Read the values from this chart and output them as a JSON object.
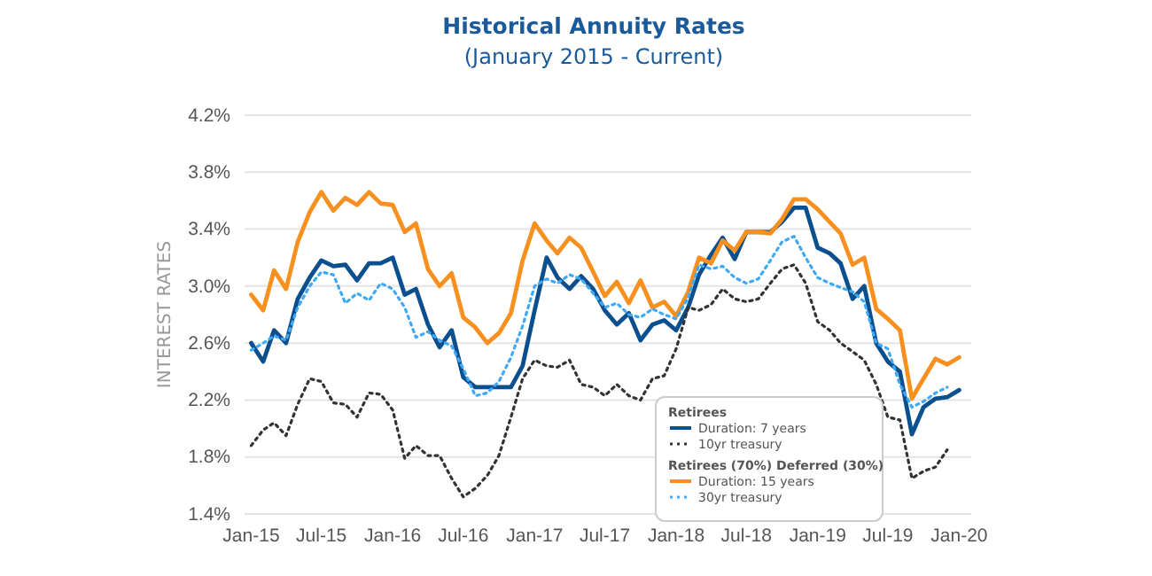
{
  "chart_data": {
    "type": "line",
    "title": "Historical Annuity Rates",
    "subtitle": "(January 2015 - Current)",
    "ylabel": "INTEREST RATES",
    "legend_title": "Retirees",
    "annotations": [
      "Retirees (70%) Deferred (30%)"
    ],
    "x": [
      "2015-01",
      "2015-02",
      "2015-03",
      "2015-04",
      "2015-05",
      "2015-06",
      "2015-07",
      "2015-08",
      "2015-09",
      "2015-10",
      "2015-11",
      "2015-12",
      "2016-01",
      "2016-02",
      "2016-03",
      "2016-04",
      "2016-05",
      "2016-06",
      "2016-07",
      "2016-08",
      "2016-09",
      "2016-10",
      "2016-11",
      "2016-12",
      "2017-01",
      "2017-02",
      "2017-03",
      "2017-04",
      "2017-05",
      "2017-06",
      "2017-07",
      "2017-08",
      "2017-09",
      "2017-10",
      "2017-11",
      "2017-12",
      "2018-01",
      "2018-02",
      "2018-03",
      "2018-04",
      "2018-05",
      "2018-06",
      "2018-07",
      "2018-08",
      "2018-09",
      "2018-10",
      "2018-11",
      "2018-12",
      "2019-01",
      "2019-02",
      "2019-03",
      "2019-04",
      "2019-05",
      "2019-06",
      "2019-07",
      "2019-08",
      "2019-09",
      "2019-10",
      "2019-11",
      "2019-12",
      "2020-01"
    ],
    "series": [
      {
        "name": "Duration: 7 years",
        "color": "#0b4f8f",
        "line_style": "solid",
        "values": [
          2.6,
          2.47,
          2.69,
          2.6,
          2.91,
          3.06,
          3.18,
          3.14,
          3.15,
          3.04,
          3.16,
          3.16,
          3.2,
          2.94,
          2.98,
          2.73,
          2.57,
          2.69,
          2.36,
          2.29,
          2.29,
          2.29,
          2.29,
          2.44,
          2.83,
          3.2,
          3.06,
          2.98,
          3.07,
          2.98,
          2.83,
          2.73,
          2.81,
          2.62,
          2.73,
          2.76,
          2.69,
          2.85,
          3.08,
          3.22,
          3.34,
          3.19,
          3.38,
          3.38,
          3.38,
          3.45,
          3.55,
          3.55,
          3.27,
          3.23,
          3.16,
          2.91,
          3.0,
          2.6,
          2.47,
          2.4,
          1.96,
          2.15,
          2.21,
          2.22,
          2.27
        ]
      },
      {
        "name": "10yr treasury",
        "color": "#333333",
        "line_style": "dotted",
        "values": [
          1.88,
          1.99,
          2.04,
          1.95,
          2.17,
          2.35,
          2.33,
          2.18,
          2.17,
          2.08,
          2.25,
          2.24,
          2.13,
          1.79,
          1.88,
          1.81,
          1.81,
          1.65,
          1.52,
          1.58,
          1.67,
          1.81,
          2.08,
          2.35,
          2.48,
          2.44,
          2.43,
          2.48,
          2.31,
          2.29,
          2.23,
          2.31,
          2.23,
          2.2,
          2.35,
          2.37,
          2.56,
          2.85,
          2.83,
          2.87,
          2.98,
          2.91,
          2.89,
          2.91,
          3.02,
          3.12,
          3.15,
          3.02,
          2.75,
          2.69,
          2.6,
          2.54,
          2.48,
          2.31,
          2.08,
          2.06,
          1.65,
          1.7,
          1.73,
          1.85,
          null
        ]
      },
      {
        "name": "Duration: 15 years",
        "color": "#f7901e",
        "line_style": "solid",
        "values": [
          2.94,
          2.83,
          3.11,
          2.98,
          3.31,
          3.52,
          3.66,
          3.53,
          3.62,
          3.57,
          3.66,
          3.58,
          3.57,
          3.38,
          3.44,
          3.12,
          3.0,
          3.09,
          2.78,
          2.71,
          2.6,
          2.67,
          2.81,
          3.18,
          3.44,
          3.32,
          3.23,
          3.34,
          3.27,
          3.1,
          2.93,
          3.03,
          2.88,
          3.04,
          2.85,
          2.89,
          2.79,
          2.96,
          3.2,
          3.16,
          3.32,
          3.25,
          3.38,
          3.38,
          3.37,
          3.47,
          3.61,
          3.61,
          3.54,
          3.45,
          3.37,
          3.15,
          3.2,
          2.84,
          2.77,
          2.69,
          2.21,
          2.35,
          2.49,
          2.45,
          2.5
        ]
      },
      {
        "name": "30yr treasury",
        "color": "#3fa9f5",
        "line_style": "dotted",
        "values": [
          2.55,
          2.6,
          2.65,
          2.62,
          2.85,
          3.0,
          3.1,
          3.08,
          2.88,
          2.95,
          2.9,
          3.02,
          2.98,
          2.85,
          2.64,
          2.68,
          2.62,
          2.58,
          2.42,
          2.23,
          2.25,
          2.33,
          2.5,
          2.72,
          3.0,
          3.05,
          3.02,
          3.08,
          3.05,
          2.95,
          2.85,
          2.88,
          2.8,
          2.78,
          2.84,
          2.8,
          2.77,
          2.92,
          3.15,
          3.12,
          3.14,
          3.06,
          3.02,
          3.05,
          3.18,
          3.31,
          3.35,
          3.2,
          3.06,
          3.02,
          2.99,
          2.96,
          2.89,
          2.6,
          2.56,
          2.31,
          2.15,
          2.19,
          2.25,
          2.29,
          null
        ]
      }
    ],
    "xlim": [
      "2014-12-15",
      "2020-02-01"
    ],
    "xticks": [
      {
        "value": "2015-01",
        "label": "Jan-15"
      },
      {
        "value": "2015-07",
        "label": "Jul-15"
      },
      {
        "value": "2016-01",
        "label": "Jan-16"
      },
      {
        "value": "2016-07",
        "label": "Jul-16"
      },
      {
        "value": "2017-01",
        "label": "Jan-17"
      },
      {
        "value": "2017-07",
        "label": "Jul-17"
      },
      {
        "value": "2018-01",
        "label": "Jan-18"
      },
      {
        "value": "2018-07",
        "label": "Jul-18"
      },
      {
        "value": "2019-01",
        "label": "Jan-19"
      },
      {
        "value": "2019-07",
        "label": "Jul-19"
      },
      {
        "value": "2020-01",
        "label": "Jan-20"
      }
    ],
    "ylim": [
      1.4,
      4.2
    ],
    "yticks": [
      {
        "value": 1.4,
        "label": "1.4%"
      },
      {
        "value": 1.8,
        "label": "1.8%"
      },
      {
        "value": 2.2,
        "label": "2.2%"
      },
      {
        "value": 2.6,
        "label": "2.6%"
      },
      {
        "value": 3.0,
        "label": "3.0%"
      },
      {
        "value": 3.4,
        "label": "3.4%"
      },
      {
        "value": 3.8,
        "label": "3.8%"
      },
      {
        "value": 4.2,
        "label": "4.2%"
      }
    ],
    "grid": "y",
    "legend": "bottom right",
    "marker": "none"
  }
}
